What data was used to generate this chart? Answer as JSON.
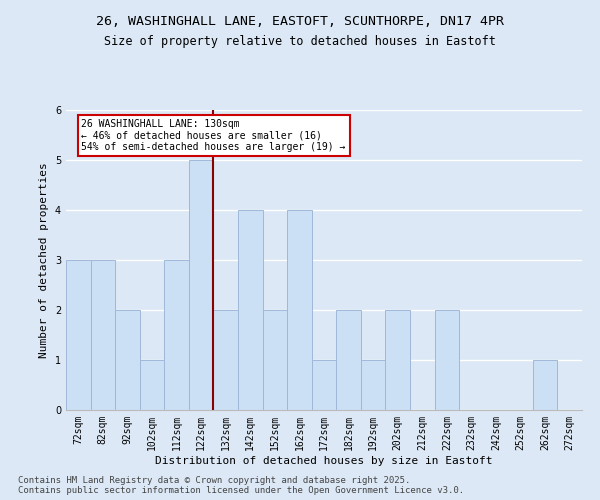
{
  "title_line1": "26, WASHINGHALL LANE, EASTOFT, SCUNTHORPE, DN17 4PR",
  "title_line2": "Size of property relative to detached houses in Eastoft",
  "xlabel": "Distribution of detached houses by size in Eastoft",
  "ylabel": "Number of detached properties",
  "categories": [
    "72sqm",
    "82sqm",
    "92sqm",
    "102sqm",
    "112sqm",
    "122sqm",
    "132sqm",
    "142sqm",
    "152sqm",
    "162sqm",
    "172sqm",
    "182sqm",
    "192sqm",
    "202sqm",
    "212sqm",
    "222sqm",
    "232sqm",
    "242sqm",
    "252sqm",
    "262sqm",
    "272sqm"
  ],
  "values": [
    3,
    3,
    2,
    1,
    3,
    5,
    2,
    4,
    2,
    4,
    1,
    2,
    1,
    2,
    0,
    2,
    0,
    0,
    0,
    1,
    0
  ],
  "bar_color": "#cce0f5",
  "bar_edge_color": "#a0b8d8",
  "vline_x_index": 5,
  "vline_color": "#8b0000",
  "annotation_text": "26 WASHINGHALL LANE: 130sqm\n← 46% of detached houses are smaller (16)\n54% of semi-detached houses are larger (19) →",
  "annotation_box_color": "#ffffff",
  "annotation_box_edge_color": "#cc0000",
  "ylim": [
    0,
    6
  ],
  "yticks": [
    0,
    1,
    2,
    3,
    4,
    5,
    6
  ],
  "footer_text": "Contains HM Land Registry data © Crown copyright and database right 2025.\nContains public sector information licensed under the Open Government Licence v3.0.",
  "bg_color": "#dce8f5",
  "plot_bg_color": "#dce8f5",
  "grid_color": "#ffffff",
  "title_fontsize": 9.5,
  "subtitle_fontsize": 8.5,
  "axis_label_fontsize": 8,
  "tick_fontsize": 7,
  "footer_fontsize": 6.5
}
